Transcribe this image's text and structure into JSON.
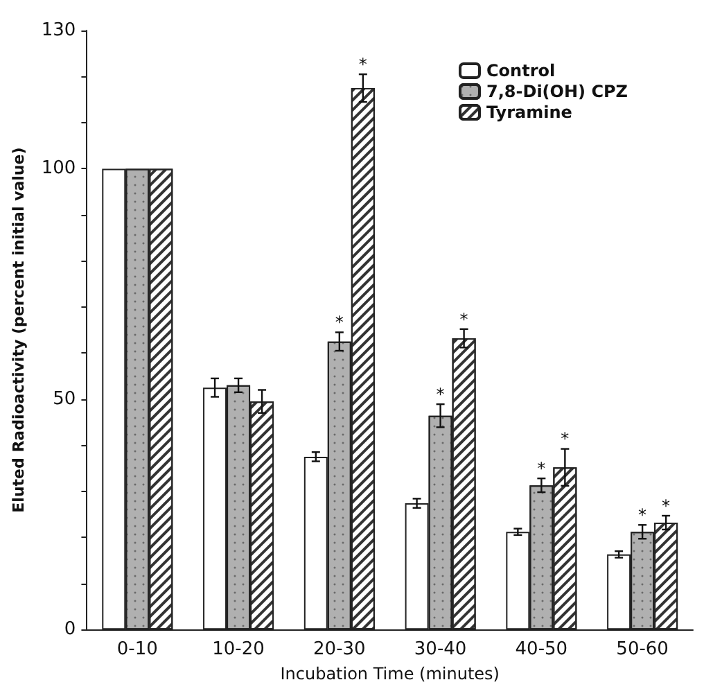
{
  "chart_data": {
    "type": "bar",
    "xlabel": "Incubation Time (minutes)",
    "ylabel": "Eluted Radioactivity (percent initial value)",
    "categories": [
      "0-10",
      "10-20",
      "20-30",
      "30-40",
      "40-50",
      "50-60"
    ],
    "series": [
      {
        "name": "Control",
        "color": "#ffffff",
        "values": [
          100,
          52.5,
          37.5,
          27.4,
          21.2,
          16.3
        ],
        "errors": [
          null,
          2,
          1,
          1,
          0.7,
          0.7
        ]
      },
      {
        "name": "7,8-Di(OH) CPZ",
        "color": "#b0b0b0",
        "values": [
          100,
          53,
          62.5,
          46.4,
          31.3,
          21.2
        ],
        "errors": [
          null,
          1.5,
          2,
          2.5,
          1.5,
          1.5
        ],
        "value_labels": [
          null,
          null,
          "*",
          "*",
          "*",
          "*"
        ]
      },
      {
        "name": "Tyramine",
        "color": "#ffffff",
        "values": [
          100,
          49.5,
          117.5,
          63.2,
          35.2,
          23.2
        ],
        "errors": [
          null,
          2.5,
          3,
          2,
          4,
          1.5
        ],
        "value_labels": [
          null,
          null,
          "*",
          "*",
          "*",
          "*"
        ]
      }
    ],
    "ylim": [
      0,
      130
    ],
    "yticks": [
      0,
      {
        "value": 10,
        "label": null
      },
      {
        "value": 20,
        "label": null
      },
      {
        "value": 30,
        "label": null
      },
      {
        "value": 40,
        "label": null
      },
      50,
      {
        "value": 60,
        "label": null
      },
      {
        "value": 70,
        "label": null
      },
      {
        "value": 80,
        "label": null
      },
      {
        "value": 90,
        "label": null
      },
      100,
      {
        "value": 110,
        "label": null
      },
      {
        "value": 120,
        "label": null
      },
      130
    ],
    "grid": false,
    "legend": "top right"
  }
}
